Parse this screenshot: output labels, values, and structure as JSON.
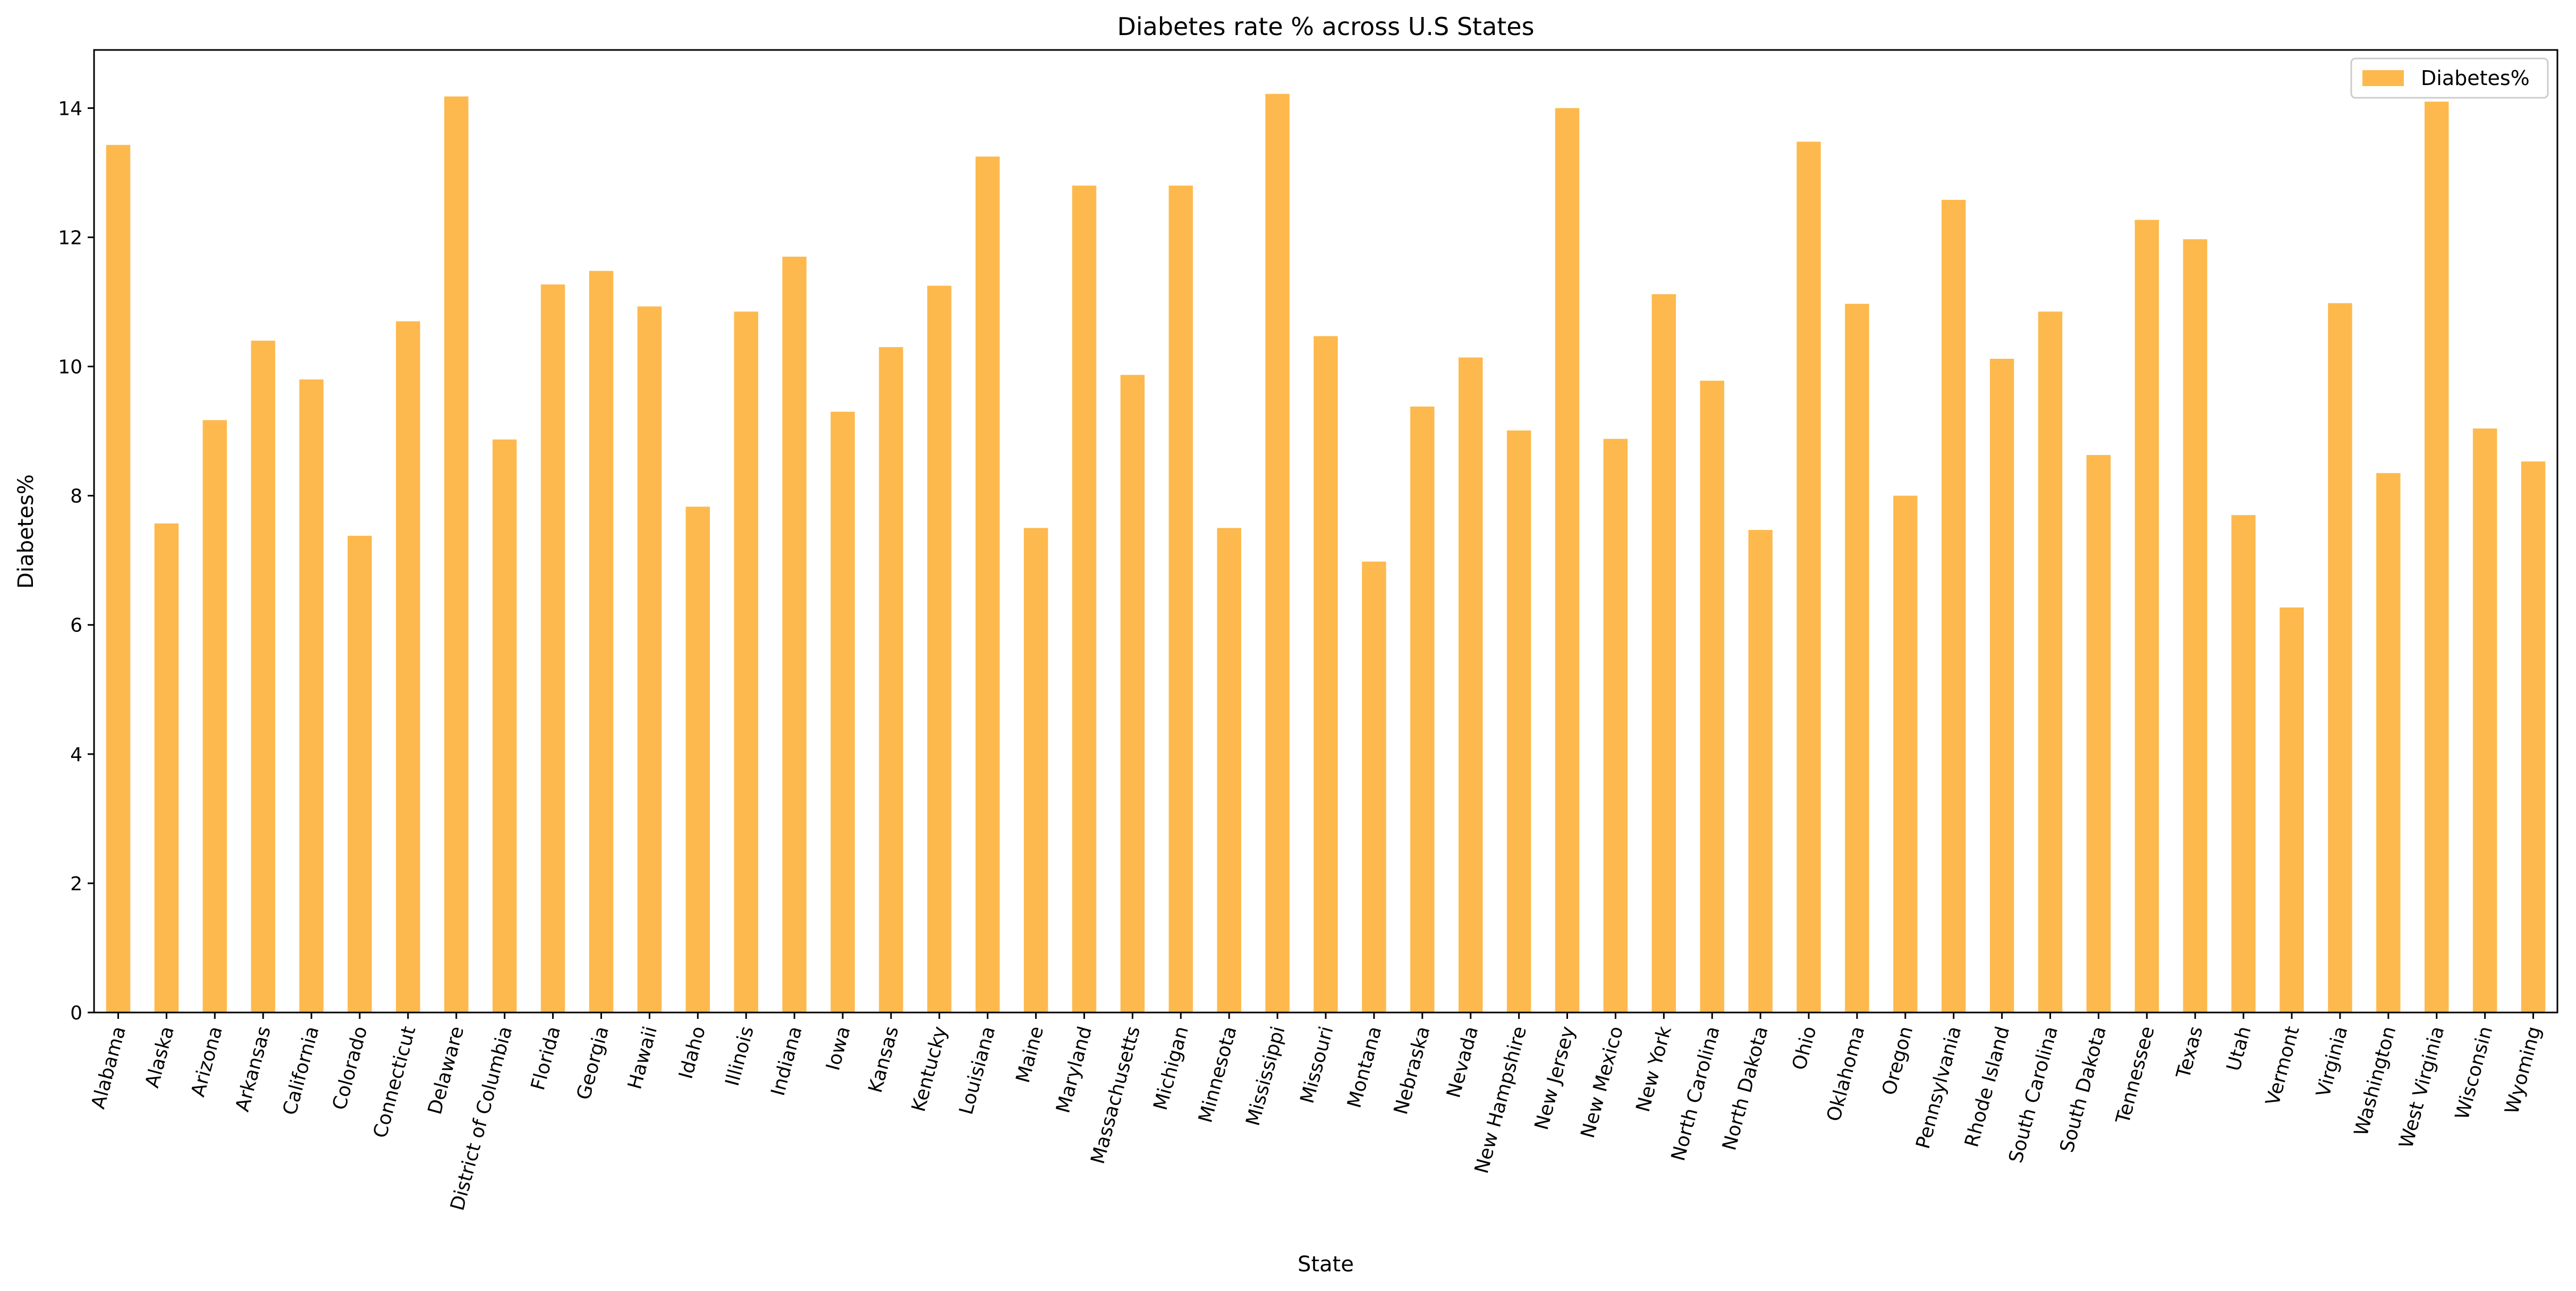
{
  "chart_data": {
    "type": "bar",
    "title": "Diabetes rate % across U.S States",
    "xlabel": "State",
    "ylabel": "Diabetes%",
    "ylim": [
      0,
      14.9
    ],
    "yticks": [
      0,
      2,
      4,
      6,
      8,
      10,
      12,
      14
    ],
    "grid": false,
    "legend_position": "top-right",
    "bar_color": "#FDB94D",
    "categories": [
      "Alabama",
      "Alaska",
      "Arizona",
      "Arkansas",
      "California",
      "Colorado",
      "Connecticut",
      "Delaware",
      "District of Columbia",
      "Florida",
      "Georgia",
      "Hawaii",
      "Idaho",
      "Illinois",
      "Indiana",
      "Iowa",
      "Kansas",
      "Kentucky",
      "Louisiana",
      "Maine",
      "Maryland",
      "Massachusetts",
      "Michigan",
      "Minnesota",
      "Mississippi",
      "Missouri",
      "Montana",
      "Nebraska",
      "Nevada",
      "New Hampshire",
      "New Jersey",
      "New Mexico",
      "New York",
      "North Carolina",
      "North Dakota",
      "Ohio",
      "Oklahoma",
      "Oregon",
      "Pennsylvania",
      "Rhode Island",
      "South Carolina",
      "South Dakota",
      "Tennessee",
      "Texas",
      "Utah",
      "Vermont",
      "Virginia",
      "Washington",
      "West Virginia",
      "Wisconsin",
      "Wyoming"
    ],
    "series": [
      {
        "name": "Diabetes%",
        "values": [
          13.43,
          7.57,
          9.17,
          10.4,
          9.8,
          7.38,
          10.7,
          14.18,
          8.87,
          11.27,
          11.48,
          10.93,
          7.83,
          10.85,
          11.7,
          9.3,
          10.3,
          11.25,
          13.25,
          7.5,
          12.8,
          9.87,
          12.8,
          7.5,
          14.22,
          10.47,
          6.98,
          9.38,
          10.14,
          9.01,
          14.0,
          8.88,
          11.12,
          9.78,
          7.47,
          13.48,
          10.97,
          8.0,
          12.58,
          10.12,
          10.85,
          8.63,
          12.27,
          11.97,
          7.7,
          6.27,
          10.98,
          8.35,
          14.1,
          9.04,
          8.53
        ]
      }
    ]
  }
}
